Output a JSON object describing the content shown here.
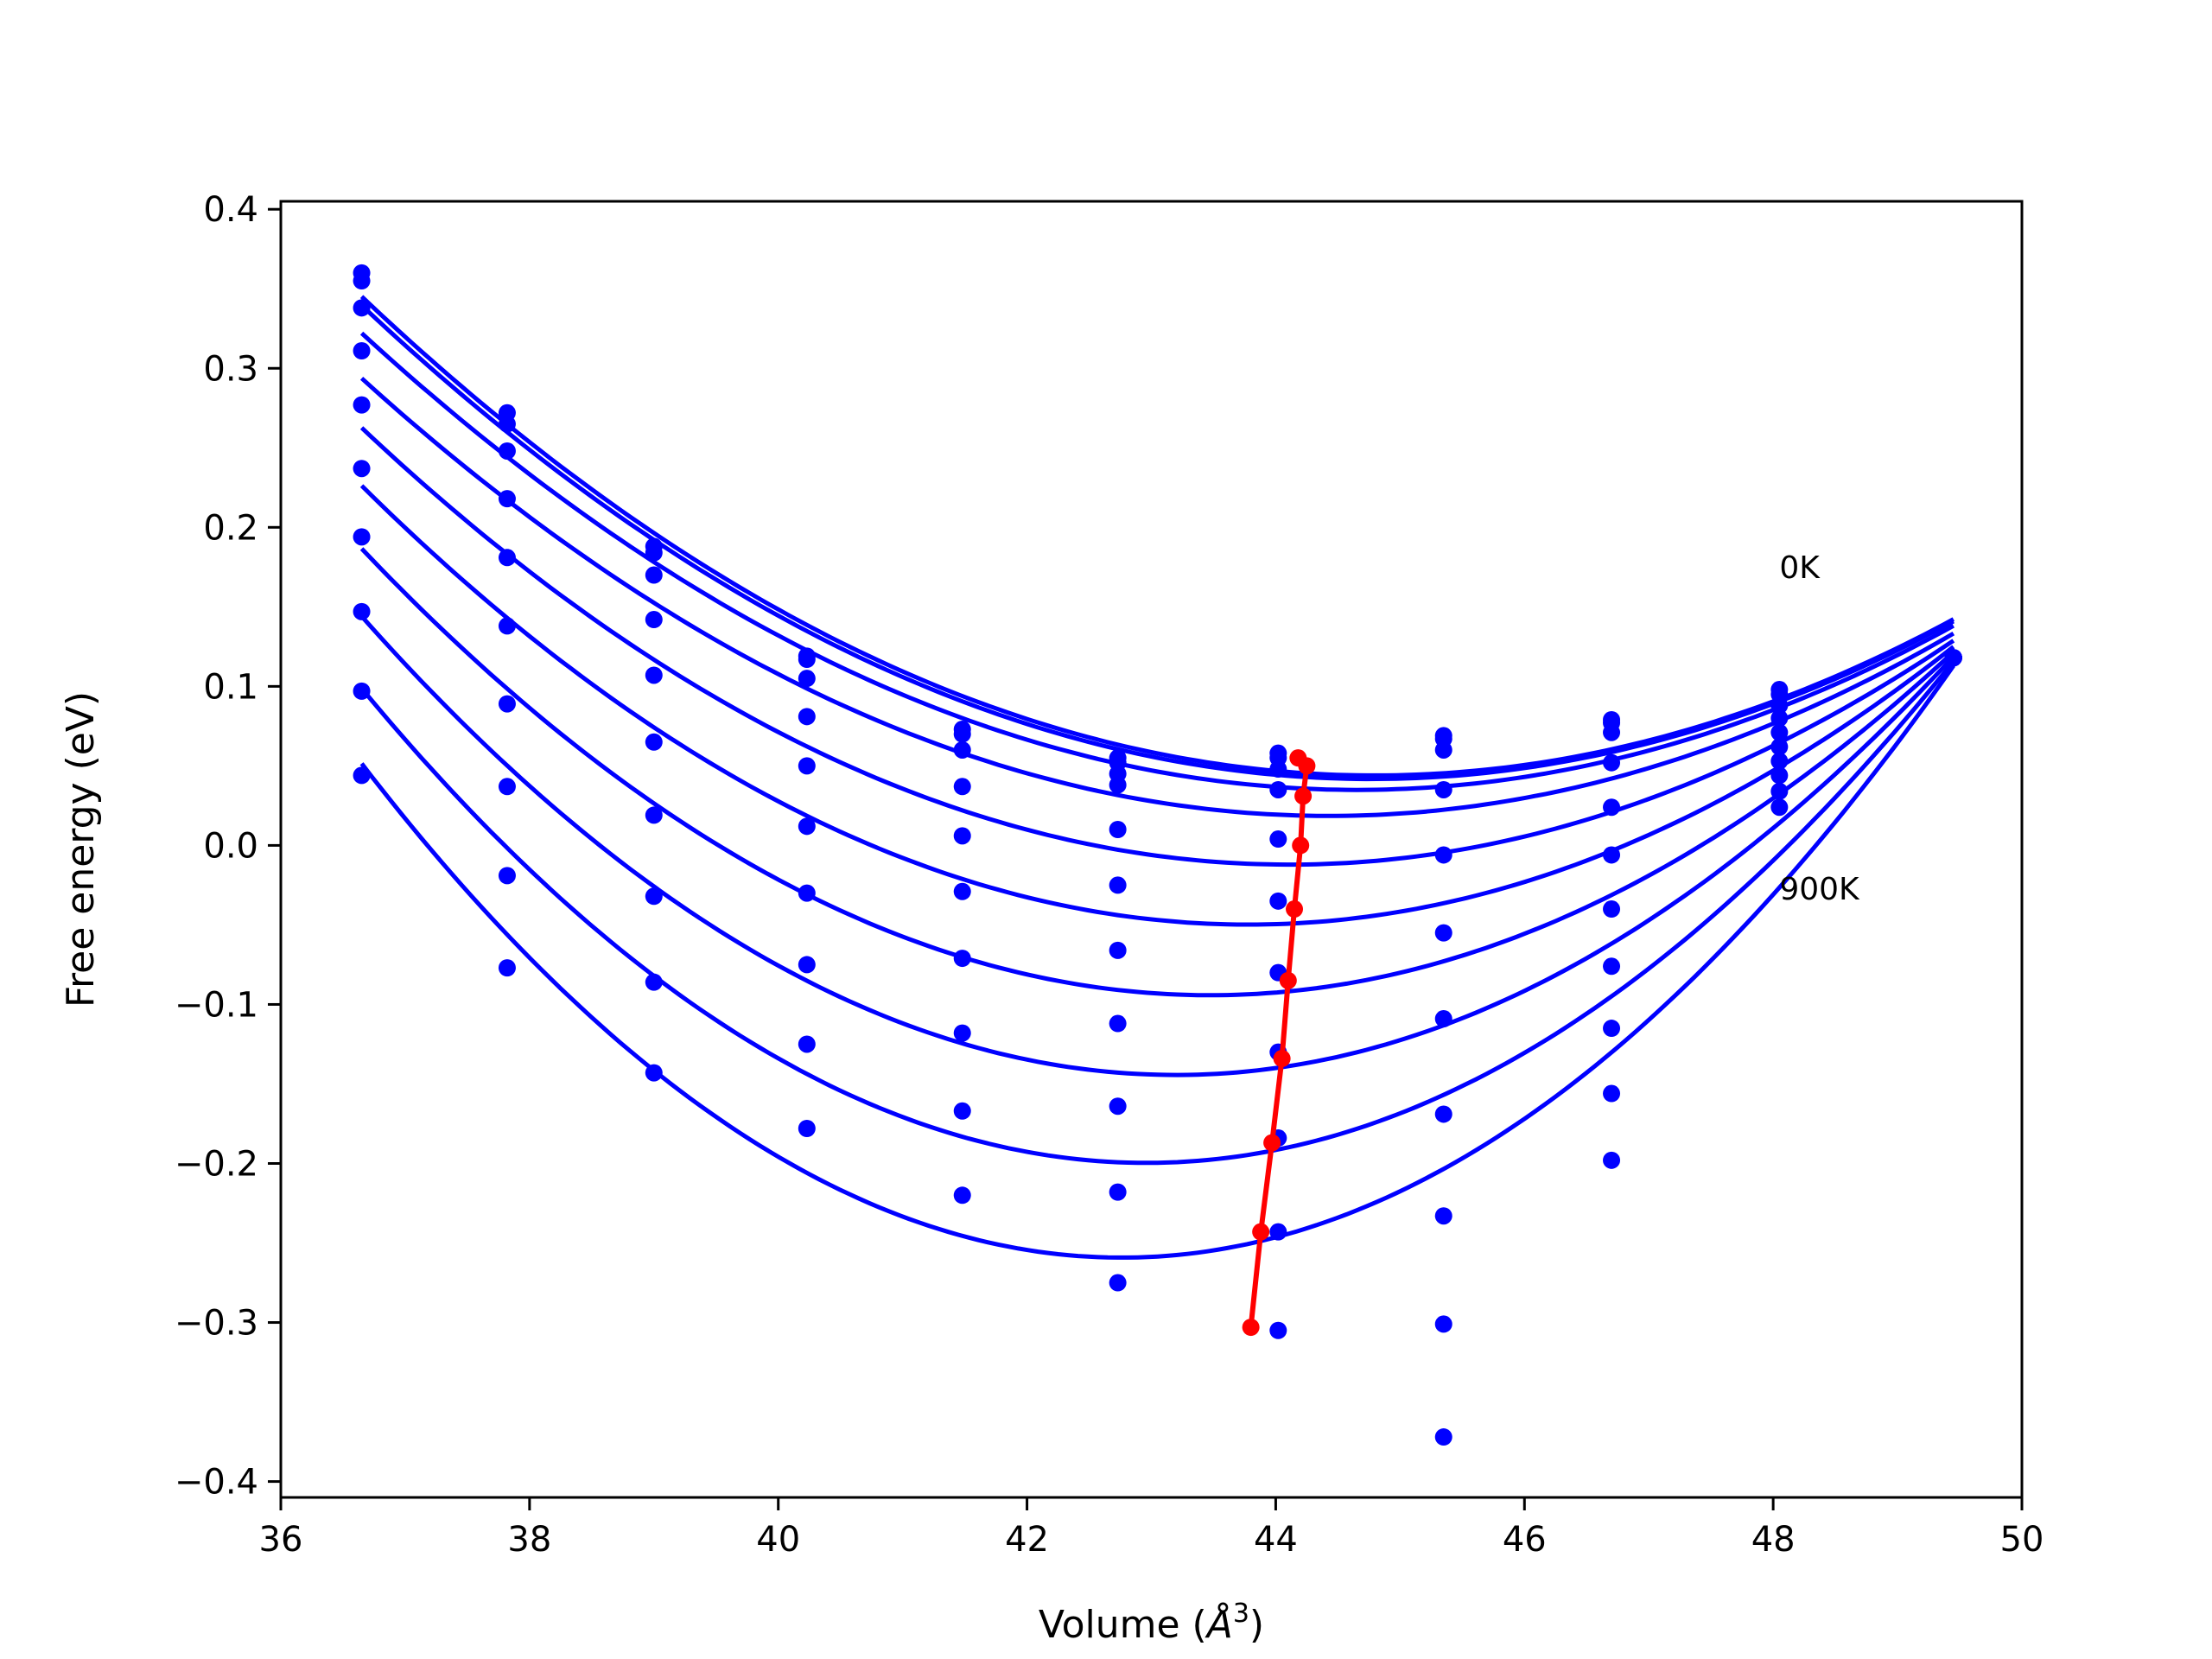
{
  "chart_data": {
    "type": "scatter",
    "title": "",
    "xlabel": "Volume (",
    "xlabel_symbol": "Å",
    "xlabel_exp": "3",
    "xlabel_close": ")",
    "ylabel": "Free energy (eV)",
    "xlim": [
      36,
      50
    ],
    "ylim": [
      -0.41,
      0.405
    ],
    "xticks": [
      36,
      38,
      40,
      42,
      44,
      46,
      48,
      50
    ],
    "yticks": [
      -0.4,
      -0.3,
      -0.2,
      -0.1,
      0.0,
      0.1,
      0.2,
      0.3,
      0.4
    ],
    "ytick_labels": [
      "−0.4",
      "−0.3",
      "−0.2",
      "−0.1",
      "0.0",
      "0.1",
      "0.2",
      "0.3",
      "0.4"
    ],
    "grid": false,
    "annotations": [
      {
        "text": "0K",
        "x": 48.05,
        "y": 0.168
      },
      {
        "text": "900K",
        "x": 48.05,
        "y": -0.034
      }
    ],
    "colors": {
      "series": "#0000ff",
      "minimum_path": "#ff0000"
    },
    "volumes": [
      36.65,
      37.82,
      39.0,
      40.23,
      41.48,
      42.73,
      44.02,
      45.35,
      46.7,
      48.05,
      49.45
    ],
    "series": [
      {
        "F": [
          0.36,
          0.272,
          0.188,
          0.119,
          0.073,
          0.055,
          0.058,
          0.069,
          0.079,
          0.098,
          0.118
        ]
      },
      {
        "F": [
          0.355,
          0.265,
          0.184,
          0.117,
          0.07,
          0.052,
          0.055,
          0.067,
          0.077,
          0.095,
          0.118
        ]
      },
      {
        "F": [
          0.338,
          0.248,
          0.17,
          0.105,
          0.06,
          0.045,
          0.048,
          0.06,
          0.071,
          0.088,
          0.118
        ]
      },
      {
        "F": [
          0.311,
          0.218,
          0.142,
          0.081,
          0.037,
          0.038,
          0.035,
          0.035,
          0.052,
          0.08,
          0.118
        ]
      },
      {
        "F": [
          0.277,
          0.181,
          0.107,
          0.05,
          0.006,
          0.01,
          0.004,
          -0.006,
          0.024,
          0.071,
          0.118
        ]
      },
      {
        "F": [
          0.237,
          0.138,
          0.065,
          0.012,
          -0.029,
          -0.025,
          -0.035,
          -0.055,
          -0.006,
          0.062,
          0.118
        ]
      },
      {
        "F": [
          0.194,
          0.089,
          0.019,
          -0.03,
          -0.071,
          -0.066,
          -0.08,
          -0.109,
          -0.04,
          0.053,
          0.118
        ]
      },
      {
        "F": [
          0.147,
          0.037,
          -0.032,
          -0.075,
          -0.118,
          -0.112,
          -0.13,
          -0.169,
          -0.076,
          0.044,
          0.118
        ]
      },
      {
        "F": [
          0.097,
          -0.019,
          -0.086,
          -0.125,
          -0.167,
          -0.164,
          -0.184,
          -0.233,
          -0.115,
          0.034,
          0.118
        ]
      },
      {
        "F": [
          0.044,
          -0.077,
          -0.143,
          -0.178,
          -0.22,
          -0.218,
          -0.243,
          -0.301,
          -0.156,
          0.024,
          0.118
        ]
      },
      {
        "F": [
          null,
          null,
          null,
          null,
          null,
          -0.275,
          -0.305,
          -0.372,
          -0.198,
          null,
          null
        ]
      }
    ],
    "minimum_path": {
      "x": [
        44.18,
        44.25,
        44.22,
        44.2,
        44.15,
        44.1,
        44.05,
        43.97,
        43.88,
        43.8
      ],
      "y": [
        0.055,
        0.05,
        0.031,
        0.0,
        -0.04,
        -0.085,
        -0.134,
        -0.187,
        -0.243,
        -0.303
      ]
    }
  }
}
